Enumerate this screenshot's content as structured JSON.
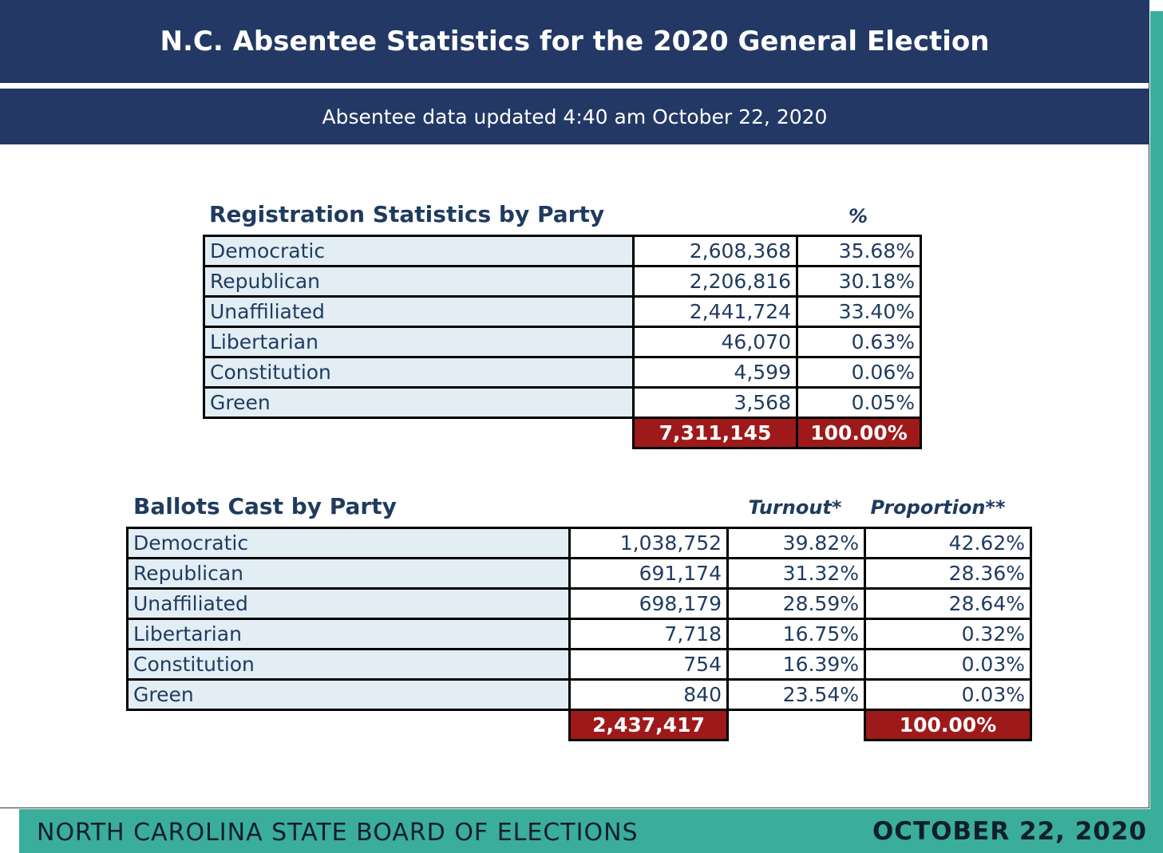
{
  "header": {
    "title": "N.C. Absentee Statistics for the 2020 General Election",
    "updated": "Absentee data updated 4:40 am October 22, 2020"
  },
  "registration": {
    "title": "Registration Statistics by Party",
    "pct_header": "%",
    "rows": [
      {
        "party": "Democratic",
        "count": "2,608,368",
        "pct": "35.68%"
      },
      {
        "party": "Republican",
        "count": "2,206,816",
        "pct": "30.18%"
      },
      {
        "party": "Unaffiliated",
        "count": "2,441,724",
        "pct": "33.40%"
      },
      {
        "party": "Libertarian",
        "count": "46,070",
        "pct": "0.63%"
      },
      {
        "party": "Constitution",
        "count": "4,599",
        "pct": "0.06%"
      },
      {
        "party": "Green",
        "count": "3,568",
        "pct": "0.05%"
      }
    ],
    "total_count": "7,311,145",
    "total_pct": "100.00%"
  },
  "ballots": {
    "title": "Ballots Cast by Party",
    "turnout_header": "Turnout*",
    "proportion_header": "Proportion**",
    "rows": [
      {
        "party": "Democratic",
        "count": "1,038,752",
        "turnout": "39.82%",
        "proportion": "42.62%"
      },
      {
        "party": "Republican",
        "count": "691,174",
        "turnout": "31.32%",
        "proportion": "28.36%"
      },
      {
        "party": "Unaffiliated",
        "count": "698,179",
        "turnout": "28.59%",
        "proportion": "28.64%"
      },
      {
        "party": "Libertarian",
        "count": "7,718",
        "turnout": "16.75%",
        "proportion": "0.32%"
      },
      {
        "party": "Constitution",
        "count": "754",
        "turnout": "16.39%",
        "proportion": "0.03%"
      },
      {
        "party": "Green",
        "count": "840",
        "turnout": "23.54%",
        "proportion": "0.03%"
      }
    ],
    "total_count": "2,437,417",
    "total_proportion": "100.00%"
  },
  "footer": {
    "org": "NORTH CAROLINA STATE BOARD OF ELECTIONS",
    "date": "OCTOBER 22, 2020"
  },
  "colors": {
    "header_bg": "#233864",
    "total_bg": "#9e1a1a",
    "label_bg": "#e2edf4",
    "accent_teal": "#3aae9b"
  }
}
